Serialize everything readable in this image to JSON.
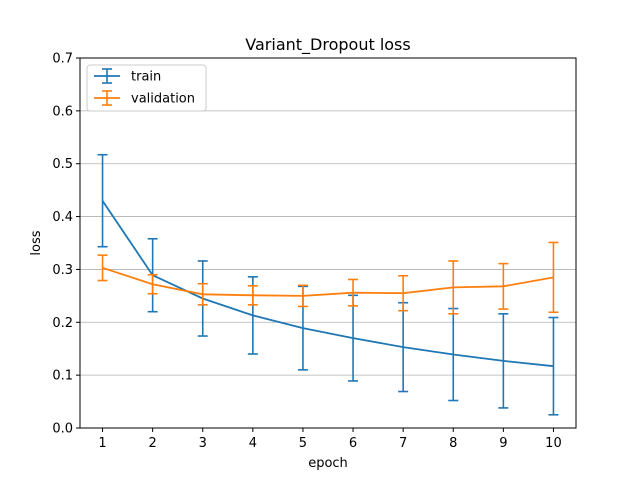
{
  "chart_data": {
    "type": "line",
    "title": "Variant_Dropout loss",
    "xlabel": "epoch",
    "ylabel": "loss",
    "x": [
      1,
      2,
      3,
      4,
      5,
      6,
      7,
      8,
      9,
      10
    ],
    "xticks": [
      "1",
      "2",
      "3",
      "4",
      "5",
      "6",
      "7",
      "8",
      "9",
      "10"
    ],
    "ylim": [
      0,
      0.7
    ],
    "yticks": [
      "0.0",
      "0.1",
      "0.2",
      "0.3",
      "0.4",
      "0.5",
      "0.6",
      "0.7"
    ],
    "grid": "horizontal",
    "legend_position": "top-left",
    "series": [
      {
        "name": "train",
        "color": "#1f77b4",
        "values": [
          0.43,
          0.289,
          0.245,
          0.213,
          0.189,
          0.17,
          0.153,
          0.139,
          0.127,
          0.117
        ],
        "errors": [
          0.087,
          0.069,
          0.071,
          0.073,
          0.079,
          0.081,
          0.084,
          0.087,
          0.089,
          0.092
        ]
      },
      {
        "name": "validation",
        "color": "#ff7f0e",
        "values": [
          0.303,
          0.272,
          0.253,
          0.251,
          0.25,
          0.256,
          0.255,
          0.266,
          0.268,
          0.285
        ],
        "errors": [
          0.024,
          0.018,
          0.02,
          0.018,
          0.02,
          0.025,
          0.033,
          0.05,
          0.043,
          0.066
        ]
      }
    ]
  }
}
